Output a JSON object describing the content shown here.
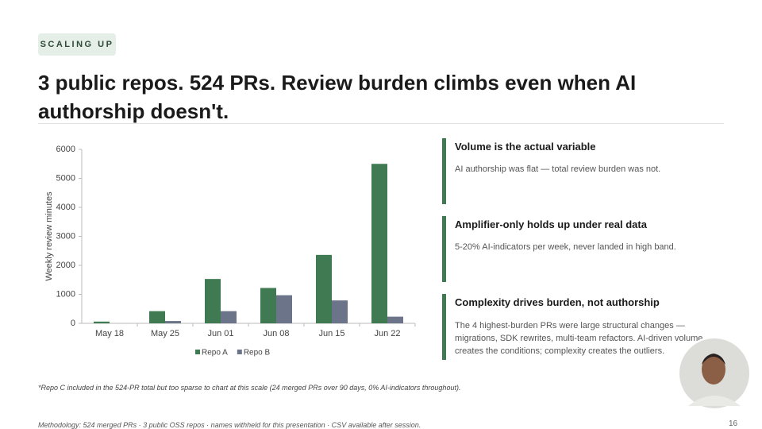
{
  "tag": "SCALING UP",
  "title": "3 public repos. 524 PRs. Review burden climbs even when AI authorship doesn't.",
  "chart_data": {
    "type": "bar",
    "categories": [
      "May 18",
      "May 25",
      "Jun 01",
      "Jun 08",
      "Jun 15",
      "Jun 22"
    ],
    "series": [
      {
        "name": "Repo A",
        "color": "#3f7a52",
        "values": [
          60,
          420,
          1530,
          1220,
          2360,
          5500
        ]
      },
      {
        "name": "Repo B",
        "color": "#6b7489",
        "values": [
          0,
          80,
          420,
          970,
          790,
          230
        ]
      }
    ],
    "ylabel": "Weekly review minutes",
    "ylim": [
      0,
      6000
    ],
    "yticks": [
      0,
      1000,
      2000,
      3000,
      4000,
      5000,
      6000
    ],
    "grid": false,
    "legend": "bottom"
  },
  "panels": [
    {
      "heading": "Volume is the actual variable",
      "body": "AI authorship was flat — total review burden was not."
    },
    {
      "heading": "Amplifier-only holds up under real data",
      "body": "5-20% AI-indicators per week, never landed in high band."
    },
    {
      "heading": "Complexity drives burden, not authorship",
      "body": "The 4 highest-burden PRs were large structural changes — migrations, SDK rewrites, multi-team refactors. AI-driven volume creates the conditions; complexity creates the outliers."
    }
  ],
  "footnote": "*Repo C included in the 524-PR total but too sparse to chart at this scale (24 merged PRs over 90 days, 0% AI-indicators throughout).",
  "methodology": "Methodology: 524 merged PRs · 3 public OSS repos · names withheld for this presentation · CSV available after session.",
  "page_number": "16"
}
